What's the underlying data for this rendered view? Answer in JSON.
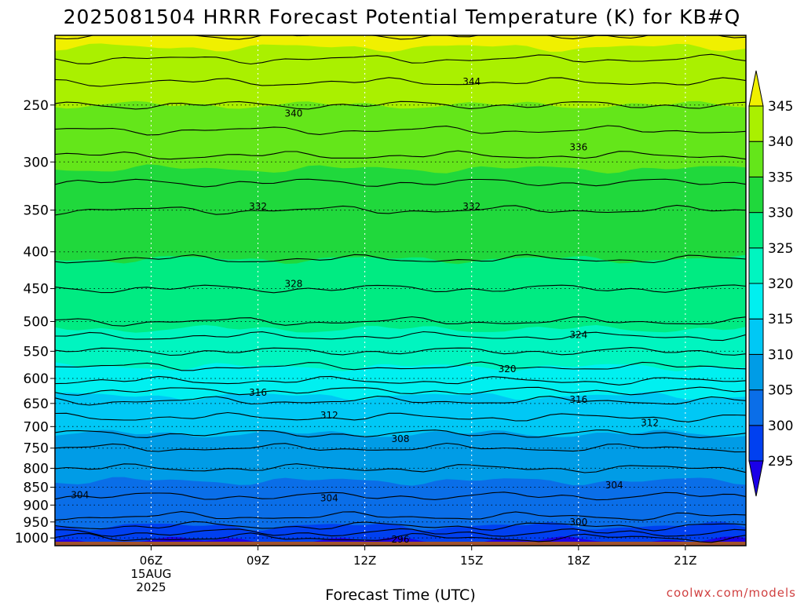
{
  "chart_data": {
    "type": "heatmap",
    "title": "2025081504 HRRR Forecast Potential Temperature (K) for KB#Q",
    "xlabel": "Forecast Time (UTC)",
    "ylabel": "",
    "credit": "coolwx.com/models",
    "y_axis": {
      "scale": "log",
      "inverted": true,
      "range_hpa": [
        1025,
        200
      ],
      "ticks": [
        250,
        300,
        350,
        400,
        450,
        500,
        550,
        600,
        650,
        700,
        750,
        800,
        850,
        900,
        950,
        1000
      ]
    },
    "x_axis": {
      "range_hours_utc": [
        3.3,
        22.7
      ],
      "ticks": [
        {
          "hour": 6,
          "label": "06Z",
          "sublabel": "15AUG",
          "sublabel2": "2025"
        },
        {
          "hour": 9,
          "label": "09Z"
        },
        {
          "hour": 12,
          "label": "12Z"
        },
        {
          "hour": 15,
          "label": "15Z"
        },
        {
          "hour": 18,
          "label": "18Z"
        },
        {
          "hour": 21,
          "label": "21Z"
        }
      ]
    },
    "grid": true,
    "ground_color": "#a0522d",
    "colorbar": {
      "placement": "right",
      "levels": [
        295,
        300,
        305,
        310,
        315,
        320,
        325,
        330,
        335,
        340,
        345
      ],
      "colors": [
        "#1a00e8",
        "#0040f0",
        "#0a6ee8",
        "#009ce6",
        "#00c8f5",
        "#00f0f0",
        "#00f5c0",
        "#00eb82",
        "#20d83c",
        "#64e61a",
        "#aaf000",
        "#f0f000"
      ],
      "labels": [
        "295",
        "300",
        "305",
        "310",
        "315",
        "320",
        "325",
        "330",
        "335",
        "340",
        "345"
      ]
    },
    "theta_profile": [
      {
        "p": 1000,
        "theta": 296
      },
      {
        "p": 975,
        "theta": 299
      },
      {
        "p": 950,
        "theta": 301
      },
      {
        "p": 925,
        "theta": 302.5
      },
      {
        "p": 900,
        "theta": 303.5
      },
      {
        "p": 850,
        "theta": 304.5
      },
      {
        "p": 800,
        "theta": 306
      },
      {
        "p": 750,
        "theta": 308
      },
      {
        "p": 700,
        "theta": 311
      },
      {
        "p": 650,
        "theta": 313.5
      },
      {
        "p": 600,
        "theta": 318.5
      },
      {
        "p": 550,
        "theta": 322
      },
      {
        "p": 500,
        "theta": 326
      },
      {
        "p": 450,
        "theta": 328
      },
      {
        "p": 400,
        "theta": 330.5
      },
      {
        "p": 350,
        "theta": 332
      },
      {
        "p": 300,
        "theta": 335.5
      },
      {
        "p": 250,
        "theta": 340
      },
      {
        "p": 220,
        "theta": 343.5
      },
      {
        "p": 200,
        "theta": 346
      }
    ],
    "contour_interval_k": 2,
    "contour_labels": [
      {
        "value": "344",
        "hour": 15.0,
        "p": 232
      },
      {
        "value": "340",
        "hour": 10.0,
        "p": 257
      },
      {
        "value": "336",
        "hour": 18.0,
        "p": 286
      },
      {
        "value": "332",
        "hour": 9.0,
        "p": 346
      },
      {
        "value": "332",
        "hour": 15.0,
        "p": 346
      },
      {
        "value": "328",
        "hour": 10.0,
        "p": 443
      },
      {
        "value": "324",
        "hour": 18.0,
        "p": 522
      },
      {
        "value": "320",
        "hour": 16.0,
        "p": 582
      },
      {
        "value": "316",
        "hour": 9.0,
        "p": 628
      },
      {
        "value": "316",
        "hour": 18.0,
        "p": 642
      },
      {
        "value": "312",
        "hour": 11.0,
        "p": 675
      },
      {
        "value": "312",
        "hour": 20.0,
        "p": 692
      },
      {
        "value": "308",
        "hour": 13.0,
        "p": 728
      },
      {
        "value": "304",
        "hour": 4.0,
        "p": 872
      },
      {
        "value": "304",
        "hour": 11.0,
        "p": 880
      },
      {
        "value": "304",
        "hour": 19.0,
        "p": 845
      },
      {
        "value": "300",
        "hour": 18.0,
        "p": 950
      },
      {
        "value": "296",
        "hour": 13.0,
        "p": 1005
      }
    ]
  }
}
